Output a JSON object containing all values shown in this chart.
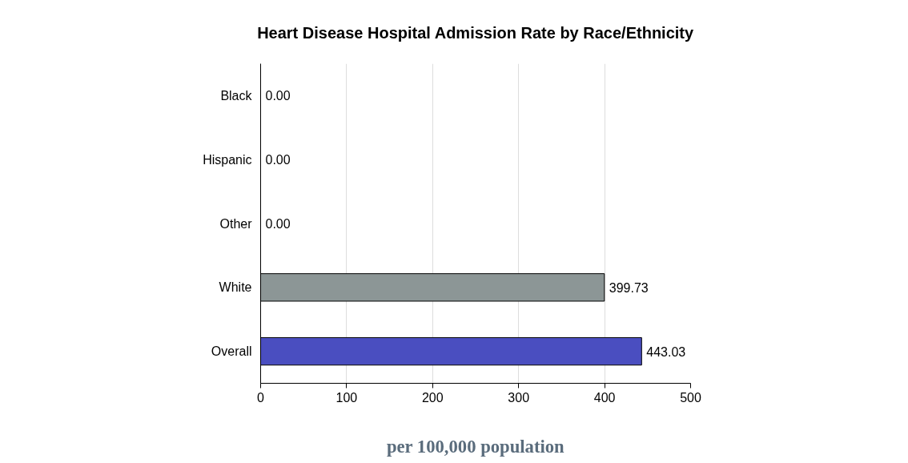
{
  "chart_data": {
    "type": "bar",
    "orientation": "horizontal",
    "title": "Heart Disease Hospital Admission Rate by Race/Ethnicity",
    "xlabel": "per 100,000 population",
    "categories": [
      "Black",
      "Hispanic",
      "Other",
      "White",
      "Overall"
    ],
    "values": [
      0,
      0,
      0,
      399.73,
      443.03
    ],
    "colors": [
      null,
      null,
      null,
      "#8c9696",
      "#4a4ec0"
    ],
    "value_labels": [
      "0.00",
      "0.00",
      "0.00",
      "399.73",
      "443.03"
    ],
    "xlim": [
      0,
      500
    ],
    "xticks": [
      0,
      100,
      200,
      300,
      400,
      500
    ],
    "grid": "x"
  }
}
